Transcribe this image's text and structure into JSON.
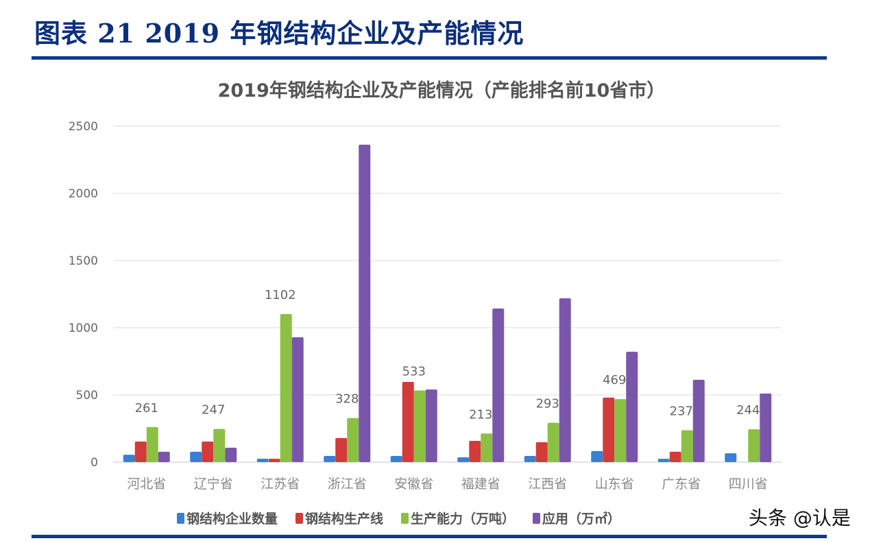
{
  "header": {
    "figure_title": "图表 21  2019 年钢结构企业及产能情况"
  },
  "watermark": "头条 @认是",
  "chart_data": {
    "type": "bar",
    "title": "2019年钢结构企业及产能情况（产能排名前10省市）",
    "xlabel": "",
    "ylabel": "",
    "ylim": [
      0,
      2500
    ],
    "yticks": [
      0,
      500,
      1000,
      1500,
      2000,
      2500
    ],
    "grid": true,
    "legend_position": "bottom",
    "categories": [
      "河北省",
      "辽宁省",
      "江苏省",
      "浙江省",
      "安徽省",
      "福建省",
      "江西省",
      "山东省",
      "广东省",
      "四川省"
    ],
    "series": [
      {
        "name": "钢结构企业数量",
        "color": "#3a7fd5",
        "values": [
          55,
          77,
          25,
          46,
          46,
          36,
          46,
          82,
          25,
          66
        ]
      },
      {
        "name": "钢结构生产线",
        "color": "#d33b3b",
        "values": [
          153,
          153,
          25,
          179,
          597,
          158,
          148,
          480,
          77,
          0
        ]
      },
      {
        "name": "生产能力（万吨）",
        "color": "#8cc043",
        "values": [
          261,
          247,
          1102,
          328,
          533,
          213,
          293,
          469,
          237,
          244
        ],
        "data_labels": [
          "261",
          "247",
          "1102",
          "328",
          "533",
          "213",
          "293",
          "469",
          "237",
          "244"
        ]
      },
      {
        "name": "应用（万㎡）",
        "color": "#7a56ab",
        "values": [
          77,
          107,
          929,
          2362,
          540,
          1143,
          1219,
          821,
          612,
          510
        ]
      }
    ]
  }
}
